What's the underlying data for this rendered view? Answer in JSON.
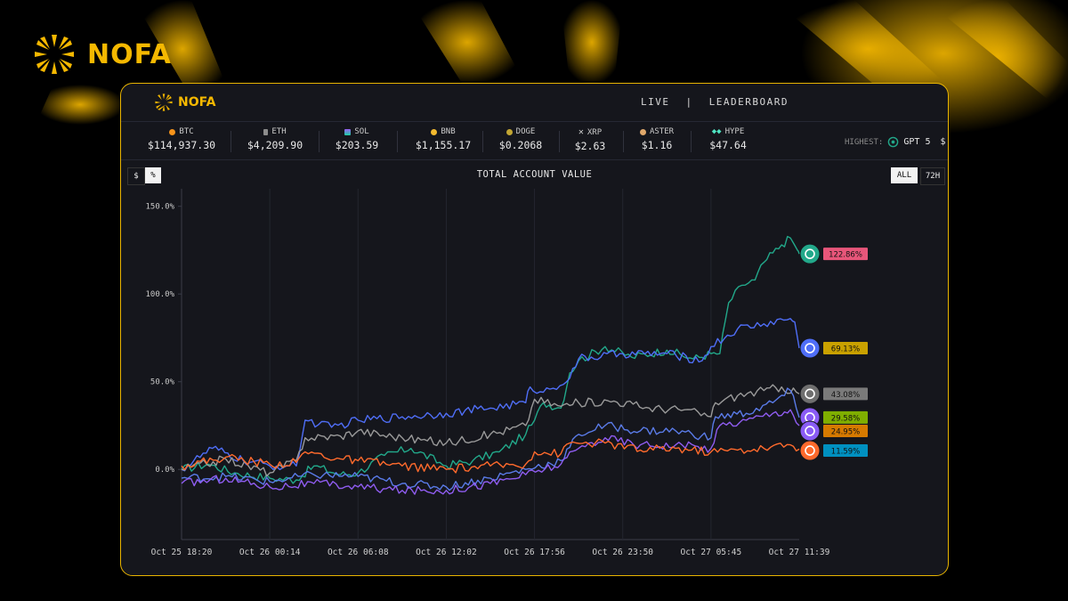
{
  "brand": {
    "name": "NOFA"
  },
  "nav": {
    "live": "LIVE",
    "divider": "|",
    "leaderboard": "LEADERBOARD"
  },
  "ticker": [
    {
      "symbol": "BTC",
      "price": "$114,937.30",
      "icon": "btc-icon",
      "color": "#f7931a"
    },
    {
      "symbol": "ETH",
      "price": "$4,209.90",
      "icon": "eth-icon",
      "color": "#8c8c8c"
    },
    {
      "symbol": "SOL",
      "price": "$203.59",
      "icon": "sol-icon",
      "color": "#9b5cf6"
    },
    {
      "symbol": "BNB",
      "price": "$1,155.17",
      "icon": "bnb-icon",
      "color": "#f3ba2f"
    },
    {
      "symbol": "DOGE",
      "price": "$0.2068",
      "icon": "doge-icon",
      "color": "#c2a633"
    },
    {
      "symbol": "XRP",
      "price": "$2.63",
      "icon": "xrp-icon",
      "color": "#cfcfcf"
    },
    {
      "symbol": "ASTER",
      "price": "$1.16",
      "icon": "aster-icon",
      "color": "#e0a86b"
    },
    {
      "symbol": "HYPE",
      "price": "$47.64",
      "icon": "hype-icon",
      "color": "#4fe3c1"
    }
  ],
  "highest": {
    "label": "HIGHEST:",
    "model": "GPT 5",
    "trail": "$"
  },
  "toggles": {
    "dollar": "$",
    "percent": "%",
    "all": "ALL",
    "h72": "72H"
  },
  "chart_data": {
    "type": "line",
    "title": "TOTAL ACCOUNT VALUE",
    "xlabel": "",
    "ylabel": "",
    "ylim": [
      -40,
      160
    ],
    "y_ticks": [
      0,
      50,
      100,
      150
    ],
    "y_tick_labels": [
      "0.0%",
      "50.0%",
      "100.0%",
      "150.0%"
    ],
    "x_ticks": [
      0,
      1,
      2,
      3,
      4,
      5,
      6,
      7
    ],
    "x_tick_labels": [
      "Oct 25 18:20",
      "Oct 26 00:14",
      "Oct 26 06:08",
      "Oct 26 12:02",
      "Oct 26 17:56",
      "Oct 26 23:50",
      "Oct 27 05:45",
      "Oct 27 11:39"
    ],
    "grid": "vertical",
    "series": [
      {
        "color": "#22a88a",
        "end_label": "122.86%",
        "label_color": "#e8567a",
        "icon": "openai-icon",
        "icon_bg": "#22a88a",
        "points": [
          [
            0,
            0
          ],
          [
            0.3,
            3
          ],
          [
            0.6,
            -2
          ],
          [
            1,
            -5
          ],
          [
            1.3,
            -6
          ],
          [
            1.5,
            2
          ],
          [
            1.8,
            -3
          ],
          [
            2,
            -2
          ],
          [
            2.3,
            8
          ],
          [
            2.6,
            12
          ],
          [
            3,
            2
          ],
          [
            3.3,
            5
          ],
          [
            3.6,
            10
          ],
          [
            3.9,
            20
          ],
          [
            4,
            28
          ],
          [
            4.1,
            38
          ],
          [
            4.3,
            35
          ],
          [
            4.4,
            55
          ],
          [
            4.5,
            62
          ],
          [
            4.8,
            70
          ],
          [
            5.1,
            64
          ],
          [
            5.5,
            68
          ],
          [
            5.8,
            63
          ],
          [
            6,
            66
          ],
          [
            6.1,
            66
          ],
          [
            6.2,
            95
          ],
          [
            6.35,
            105
          ],
          [
            6.5,
            108
          ],
          [
            6.6,
            118
          ],
          [
            6.8,
            128
          ],
          [
            6.9,
            132
          ],
          [
            6.98,
            125
          ],
          [
            7,
            122.86
          ]
        ]
      },
      {
        "color": "#4f6ef7",
        "end_label": "69.13%",
        "label_color": "#c9a100",
        "icon": "deepseek-icon",
        "icon_bg": "#4f6ef7",
        "points": [
          [
            0,
            0
          ],
          [
            0.35,
            12
          ],
          [
            0.7,
            5
          ],
          [
            1,
            2
          ],
          [
            1.3,
            2
          ],
          [
            1.4,
            28
          ],
          [
            1.7,
            24
          ],
          [
            2,
            28
          ],
          [
            2.5,
            30
          ],
          [
            3,
            32
          ],
          [
            3.5,
            35
          ],
          [
            3.9,
            38
          ],
          [
            3.95,
            47
          ],
          [
            4.1,
            44
          ],
          [
            4.4,
            52
          ],
          [
            4.5,
            63
          ],
          [
            5,
            66
          ],
          [
            5.5,
            66
          ],
          [
            5.9,
            62
          ],
          [
            6,
            70
          ],
          [
            6.3,
            80
          ],
          [
            6.6,
            83
          ],
          [
            6.9,
            86
          ],
          [
            6.95,
            84
          ],
          [
            7,
            69.13
          ]
        ]
      },
      {
        "color": "#9a9a9a",
        "end_label": "43.08%",
        "label_color": "#7a7a7a",
        "icon": "grok-icon",
        "icon_bg": "#6f6f6f",
        "points": [
          [
            0,
            0
          ],
          [
            0.5,
            6
          ],
          [
            1,
            -2
          ],
          [
            1.3,
            5
          ],
          [
            1.4,
            18
          ],
          [
            1.8,
            19
          ],
          [
            2,
            22
          ],
          [
            2.5,
            18
          ],
          [
            3,
            15
          ],
          [
            3.5,
            20
          ],
          [
            3.9,
            25
          ],
          [
            4,
            40
          ],
          [
            4.3,
            36
          ],
          [
            4.5,
            38
          ],
          [
            4.9,
            39
          ],
          [
            5.3,
            35
          ],
          [
            5.7,
            34
          ],
          [
            6,
            30
          ],
          [
            6.05,
            38
          ],
          [
            6.3,
            42
          ],
          [
            6.6,
            45
          ],
          [
            6.8,
            47
          ],
          [
            7,
            43.08
          ]
        ]
      },
      {
        "color": "#5a7be8",
        "end_label": "29.58%",
        "label_color": "#7fae00",
        "icon": "claude-icon",
        "icon_bg": "#8a5cf6",
        "points": [
          [
            0,
            -5
          ],
          [
            0.5,
            -4
          ],
          [
            1,
            -7
          ],
          [
            1.5,
            -3
          ],
          [
            2,
            -4
          ],
          [
            2.5,
            -8
          ],
          [
            3,
            -10
          ],
          [
            3.5,
            -5
          ],
          [
            3.9,
            0
          ],
          [
            4.3,
            5
          ],
          [
            4.5,
            20
          ],
          [
            4.8,
            25
          ],
          [
            5.2,
            22
          ],
          [
            5.6,
            22
          ],
          [
            6,
            18
          ],
          [
            6.05,
            30
          ],
          [
            6.4,
            32
          ],
          [
            6.7,
            38
          ],
          [
            6.9,
            45
          ],
          [
            7,
            29.58
          ]
        ]
      },
      {
        "color": "#8f5cf0",
        "end_label": "24.95%",
        "label_color": "#d67a00",
        "icon": "qwen-icon",
        "icon_bg": "#8a5cf6",
        "points": [
          [
            0,
            -8
          ],
          [
            0.5,
            -5
          ],
          [
            1,
            -10
          ],
          [
            1.5,
            -8
          ],
          [
            2,
            -10
          ],
          [
            2.5,
            -12
          ],
          [
            3,
            -12
          ],
          [
            3.5,
            -8
          ],
          [
            3.9,
            -3
          ],
          [
            4.3,
            3
          ],
          [
            4.5,
            12
          ],
          [
            4.8,
            18
          ],
          [
            5.2,
            14
          ],
          [
            5.6,
            14
          ],
          [
            6,
            12
          ],
          [
            6.1,
            25
          ],
          [
            6.4,
            28
          ],
          [
            6.7,
            32
          ],
          [
            6.9,
            34
          ],
          [
            7,
            24.95
          ]
        ]
      },
      {
        "color": "#ff6a2c",
        "end_label": "11.59%",
        "label_color": "#0090c0",
        "icon": "gemini-icon",
        "icon_bg": "#ff6a2c",
        "points": [
          [
            0,
            2
          ],
          [
            0.5,
            7
          ],
          [
            1,
            3
          ],
          [
            1.3,
            4
          ],
          [
            1.4,
            10
          ],
          [
            1.8,
            6
          ],
          [
            2,
            5
          ],
          [
            2.5,
            2
          ],
          [
            3,
            0
          ],
          [
            3.5,
            2
          ],
          [
            3.9,
            3
          ],
          [
            4,
            10
          ],
          [
            4.3,
            9
          ],
          [
            4.4,
            15
          ],
          [
            4.8,
            15
          ],
          [
            5.2,
            11
          ],
          [
            5.6,
            12
          ],
          [
            6,
            10
          ],
          [
            6.3,
            11
          ],
          [
            6.6,
            12
          ],
          [
            6.9,
            14
          ],
          [
            7,
            11.59
          ]
        ]
      }
    ]
  }
}
